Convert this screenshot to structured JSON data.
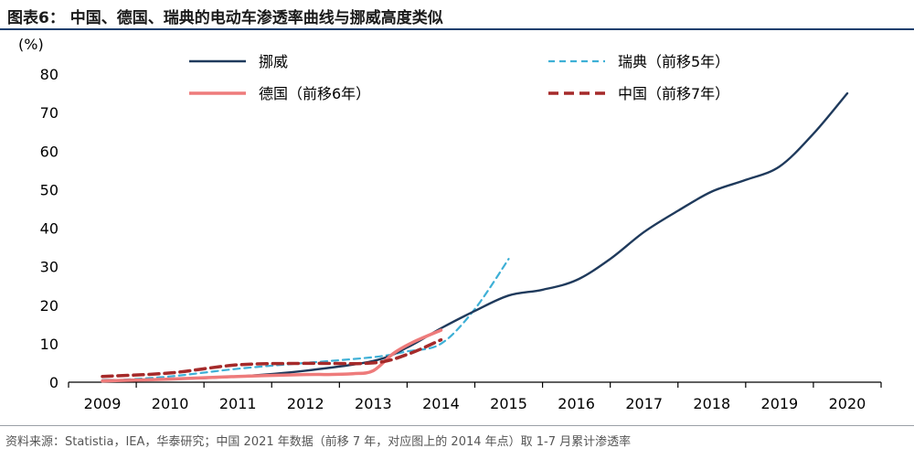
{
  "header": {
    "title": "图表6：  中国、德国、瑞典的电动车渗透率曲线与挪威高度类似"
  },
  "footer": {
    "source": "资料来源：Statistia，IEA，华泰研究；中国 2021 年数据（前移 7 年，对应图上的 2014 年点）取 1-7 月累计渗透率"
  },
  "chart_data": {
    "type": "line",
    "title": "",
    "xlabel": "",
    "ylabel": "(%)",
    "ylim": [
      0,
      80
    ],
    "y_ticks": [
      "0",
      "10",
      "20",
      "30",
      "40",
      "50",
      "60",
      "70",
      "80"
    ],
    "categories": [
      "2009",
      "2010",
      "2011",
      "2012",
      "2013",
      "2014",
      "2015",
      "2016",
      "2017",
      "2018",
      "2019",
      "2020"
    ],
    "grid": false,
    "legend_position": "top",
    "series": [
      {
        "name": "挪威",
        "color": "#1f3a5c",
        "dash": "solid",
        "x": [
          2009,
          2010,
          2011,
          2012,
          2013,
          2013.5,
          2014,
          2014.5,
          2015,
          2015.5,
          2016,
          2016.5,
          2017,
          2017.5,
          2018,
          2018.5,
          2019,
          2019.5,
          2020
        ],
        "y": [
          0.5,
          0.8,
          1.5,
          3.0,
          5.5,
          9,
          14,
          18.5,
          22.5,
          24,
          26.5,
          32,
          39,
          44.5,
          49.5,
          52.5,
          56,
          64.5,
          75
        ]
      },
      {
        "name": "瑞典（前移5年）",
        "color": "#3eb0d6",
        "dash": "dashed",
        "x": [
          2009,
          2010,
          2011,
          2012,
          2013,
          2013.5,
          2014,
          2014.5,
          2015
        ],
        "y": [
          0.3,
          1.5,
          3.5,
          5.0,
          6.5,
          8.0,
          10.0,
          19.0,
          32.0
        ]
      },
      {
        "name": "德国（前移6年）",
        "color": "#ee7b7b",
        "dash": "solid",
        "x": [
          2009,
          2010,
          2011,
          2012,
          2012.3,
          2012.7,
          2013,
          2013.3,
          2013.6,
          2014
        ],
        "y": [
          0.3,
          0.8,
          1.5,
          2.0,
          2.0,
          2.2,
          3.0,
          7.5,
          10.5,
          13.5
        ]
      },
      {
        "name": "中国（前移7年）",
        "color": "#a52a2a",
        "dash": "dashed",
        "x": [
          2009,
          2010,
          2011,
          2012,
          2013,
          2013.5,
          2014
        ],
        "y": [
          1.5,
          2.4,
          4.5,
          4.9,
          5.0,
          7.2,
          11.0
        ]
      }
    ]
  }
}
